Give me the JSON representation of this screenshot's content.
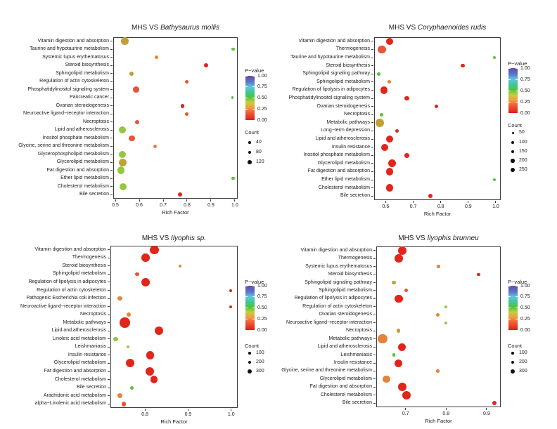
{
  "figure": {
    "background": "#ffffff",
    "x_axis_title": "Rich Factor"
  },
  "palette": {
    "red": "#e1251b",
    "red_orange": "#e85438",
    "orange": "#e5833c",
    "dark_yellow": "#bfa135",
    "yellow_green": "#93c83d",
    "green": "#59c43c",
    "legend_dot": "#111111",
    "axis": "#3c3c3c"
  },
  "pvalue_gradient_bottom_to_top": [
    "#df1d15 0%",
    "#e8432f 10%",
    "#ef6a38 20%",
    "#f29a43 28%",
    "#c3cf3e 40%",
    "#50c33a 52%",
    "#3fc79b 64%",
    "#62c5de 75%",
    "#5872cc 87%",
    "#6a4ca0 100%"
  ],
  "chart_data": [
    {
      "type": "scatter",
      "title_prefix": "MHS VS ",
      "title_species": "Bathysaurus mollis",
      "xlabel": "Rich Factor",
      "xlim": [
        0.491,
        1.012
      ],
      "xticks": [
        "0.5",
        "0.6",
        "0.7",
        "0.8",
        "0.9",
        "1.0"
      ],
      "xtick_values": [
        0.5,
        0.6,
        0.7,
        0.8,
        0.9,
        1.0
      ],
      "legend": {
        "pvalue_title": "P−value",
        "pvalue_labels": [
          "1.00",
          "0.75",
          "0.50",
          "0.25",
          "0.00"
        ],
        "count_title": "Count",
        "count_items": [
          {
            "label": "40",
            "r": 1.8
          },
          {
            "label": "80",
            "r": 2.3
          },
          {
            "label": "120",
            "r": 2.8
          }
        ]
      },
      "rows": [
        {
          "label": "Vitamin digestion and absorption",
          "x": 0.539,
          "r": 5.3,
          "c": "dark_yellow"
        },
        {
          "label": "Taurine and hypotaurine metabolism",
          "x": 0.993,
          "r": 2.1,
          "c": "green"
        },
        {
          "label": "Systemic lupus erythematosus",
          "x": 0.672,
          "r": 2.6,
          "c": "orange"
        },
        {
          "label": "Steroid biosynthesis",
          "x": 0.879,
          "r": 2.9,
          "c": "red"
        },
        {
          "label": "Sphingolipid metabolism",
          "x": 0.568,
          "r": 2.9,
          "c": "dark_yellow"
        },
        {
          "label": "Regulation of actin cytoskeleton",
          "x": 0.8,
          "r": 2.5,
          "c": "red_orange"
        },
        {
          "label": "Phosphatidylinositol signaling system",
          "x": 0.586,
          "r": 4.4,
          "c": "red_orange"
        },
        {
          "label": "Pancreatic cancer",
          "x": 0.99,
          "r": 1.8,
          "c": "green"
        },
        {
          "label": "Ovarian steroidogenesis",
          "x": 0.781,
          "r": 2.8,
          "c": "red"
        },
        {
          "label": "Neuroactive ligand−receptor interaction",
          "x": 0.799,
          "r": 2.5,
          "c": "red_orange"
        },
        {
          "label": "Necroptosis",
          "x": 0.592,
          "r": 3.0,
          "c": "red_orange"
        },
        {
          "label": "Lipid and atherosclerosis",
          "x": 0.53,
          "r": 5.2,
          "c": "yellow_green"
        },
        {
          "label": "Inositol phosphate metabolism",
          "x": 0.569,
          "r": 4.2,
          "c": "red_orange"
        },
        {
          "label": "Glycine, serine and threonine metabolism",
          "x": 0.667,
          "r": 2.6,
          "c": "orange"
        },
        {
          "label": "Glycerophospholipid metabolism",
          "x": 0.53,
          "r": 5.2,
          "c": "yellow_green"
        },
        {
          "label": "Glycerolipid metabolism",
          "x": 0.531,
          "r": 5.5,
          "c": "dark_yellow"
        },
        {
          "label": "Fat digestion and absorption",
          "x": 0.523,
          "r": 5.3,
          "c": "yellow_green"
        },
        {
          "label": "Ether lipid metabolism",
          "x": 0.993,
          "r": 2.1,
          "c": "green"
        },
        {
          "label": "Cholesterol metabolism",
          "x": 0.532,
          "r": 5.0,
          "c": "yellow_green"
        },
        {
          "label": "Bile secretion",
          "x": 0.77,
          "r": 3.1,
          "c": "red"
        }
      ]
    },
    {
      "type": "scatter",
      "title_prefix": "MHS VS ",
      "title_species": "Coryphaenoides rudis",
      "xlabel": "Rich Factor",
      "xlim": [
        0.558,
        1.018
      ],
      "xticks": [
        "0.6",
        "0.7",
        "0.8",
        "0.9",
        "1.0"
      ],
      "xtick_values": [
        0.6,
        0.7,
        0.8,
        0.9,
        1.0
      ],
      "legend": {
        "pvalue_title": "P−value",
        "pvalue_labels": [
          "1.00",
          "0.75",
          "0.50",
          "0.25",
          "0.00"
        ],
        "count_title": "Count",
        "count_items": [
          {
            "label": "50",
            "r": 1.5
          },
          {
            "label": "100",
            "r": 1.9
          },
          {
            "label": "150",
            "r": 2.3
          },
          {
            "label": "200",
            "r": 2.7
          },
          {
            "label": "250",
            "r": 3.1
          }
        ]
      },
      "rows": [
        {
          "label": "Vitamin digestion and absorption",
          "x": 0.613,
          "r": 5.0,
          "c": "red"
        },
        {
          "label": "Thermogenesis",
          "x": 0.586,
          "r": 5.6,
          "c": "red_orange"
        },
        {
          "label": "Taurine and hypotaurine metabolism",
          "x": 0.995,
          "r": 2.1,
          "c": "green"
        },
        {
          "label": "Steroid biosynthesis",
          "x": 0.88,
          "r": 2.6,
          "c": "red"
        },
        {
          "label": "Sphingolipid signaling pathway",
          "x": 0.574,
          "r": 2.4,
          "c": "green"
        },
        {
          "label": "Sphingolipid metabolism",
          "x": 0.613,
          "r": 2.5,
          "c": "orange"
        },
        {
          "label": "Regulation of lipolysis in adipocytes",
          "x": 0.594,
          "r": 5.3,
          "c": "red"
        },
        {
          "label": "Phosphatidylinositol signaling system",
          "x": 0.676,
          "r": 3.4,
          "c": "red"
        },
        {
          "label": "Ovarian steroidogenesis",
          "x": 0.784,
          "r": 2.7,
          "c": "red"
        },
        {
          "label": "Necroptosis",
          "x": 0.585,
          "r": 2.5,
          "c": "green"
        },
        {
          "label": "Metabolic pathways",
          "x": 0.578,
          "r": 6.2,
          "c": "dark_yellow"
        },
        {
          "label": "Long−term depression",
          "x": 0.641,
          "r": 2.8,
          "c": "red"
        },
        {
          "label": "Lipid and atherosclerosis",
          "x": 0.615,
          "r": 5.0,
          "c": "red"
        },
        {
          "label": "Insulin resistance",
          "x": 0.596,
          "r": 5.0,
          "c": "red"
        },
        {
          "label": "Inositol phosphate metabolism",
          "x": 0.676,
          "r": 3.4,
          "c": "red"
        },
        {
          "label": "Glycerolipid metabolism",
          "x": 0.623,
          "r": 5.6,
          "c": "red"
        },
        {
          "label": "Fat digestion and absorption",
          "x": 0.615,
          "r": 5.2,
          "c": "red"
        },
        {
          "label": "Ether lipid metabolism",
          "x": 0.995,
          "r": 2.1,
          "c": "green"
        },
        {
          "label": "Cholesterol metabolism",
          "x": 0.615,
          "r": 5.2,
          "c": "red"
        },
        {
          "label": "Bile secretion",
          "x": 0.762,
          "r": 3.0,
          "c": "red"
        }
      ]
    },
    {
      "type": "scatter",
      "title_prefix": "MHS VS ",
      "title_species": "Ilyophis sp.",
      "xlabel": "Rich Factor",
      "xlim": [
        0.72,
        1.015
      ],
      "xticks": [
        "0.8",
        "0.9",
        "1.0"
      ],
      "xtick_values": [
        0.8,
        0.9,
        1.0
      ],
      "legend": {
        "pvalue_title": "P−value",
        "pvalue_labels": [
          "1.00",
          "0.75",
          "0.50",
          "0.25",
          "0.00"
        ],
        "count_title": "Count",
        "count_items": [
          {
            "label": "100",
            "r": 1.8
          },
          {
            "label": "200",
            "r": 2.4
          },
          {
            "label": "300",
            "r": 3.0
          }
        ]
      },
      "rows": [
        {
          "label": "Vitamin digestion and absorption",
          "x": 0.822,
          "r": 6.2,
          "c": "red"
        },
        {
          "label": "Thermogenesis",
          "x": 0.801,
          "r": 5.9,
          "c": "red"
        },
        {
          "label": "Steroid biosynthesis",
          "x": 0.881,
          "r": 2.2,
          "c": "orange"
        },
        {
          "label": "Sphingolipid metabolism",
          "x": 0.782,
          "r": 2.9,
          "c": "red_orange"
        },
        {
          "label": "Regulation of lipolysis in adipocytes",
          "x": 0.801,
          "r": 5.9,
          "c": "red"
        },
        {
          "label": "Regulation of actin cytoskeleton",
          "x": 0.998,
          "r": 2.0,
          "c": "red"
        },
        {
          "label": "Pathogenic Escherichia coli infection",
          "x": 0.742,
          "r": 3.3,
          "c": "orange"
        },
        {
          "label": "Neuroactive ligand−receptor interaction",
          "x": 0.998,
          "r": 2.0,
          "c": "red"
        },
        {
          "label": "Necroptosis",
          "x": 0.762,
          "r": 2.9,
          "c": "orange"
        },
        {
          "label": "Metabolic pathways",
          "x": 0.753,
          "r": 7.3,
          "c": "red"
        },
        {
          "label": "Lipid and atherosclerosis",
          "x": 0.832,
          "r": 6.2,
          "c": "red"
        },
        {
          "label": "Linoleic acid metabolism",
          "x": 0.732,
          "r": 3.3,
          "c": "yellow_green"
        },
        {
          "label": "Leishmaniasis",
          "x": 0.761,
          "r": 2.0,
          "c": "yellow_green"
        },
        {
          "label": "Insulin resistance",
          "x": 0.812,
          "r": 5.6,
          "c": "red"
        },
        {
          "label": "Glycerolipid metabolism",
          "x": 0.765,
          "r": 6.0,
          "c": "red"
        },
        {
          "label": "Fat digestion and absorption",
          "x": 0.812,
          "r": 6.0,
          "c": "red"
        },
        {
          "label": "Cholesterol metabolism",
          "x": 0.821,
          "r": 5.2,
          "c": "red"
        },
        {
          "label": "Bile secretion",
          "x": 0.77,
          "r": 2.4,
          "c": "green"
        },
        {
          "label": "Arachidonic acid metabolism",
          "x": 0.742,
          "r": 3.6,
          "c": "orange"
        },
        {
          "label": "alpha−Linolenic acid metabolism",
          "x": 0.751,
          "r": 3.4,
          "c": "red_orange"
        }
      ]
    },
    {
      "type": "scatter",
      "title_prefix": "MHS VS ",
      "title_species": "Ilyophis brunneu",
      "xlabel": "Rich Factor",
      "xlim": [
        0.6275,
        0.935
      ],
      "xticks": [
        "0.7",
        "0.8",
        "0.9"
      ],
      "xtick_values": [
        0.7,
        0.8,
        0.9
      ],
      "legend": {
        "pvalue_title": "P−value",
        "pvalue_labels": [
          "1.00",
          "0.75",
          "0.50",
          "0.25",
          "0.00"
        ],
        "count_title": "Count",
        "count_items": [
          {
            "label": "100",
            "r": 1.8
          },
          {
            "label": "200",
            "r": 2.4
          },
          {
            "label": "300",
            "r": 3.0
          }
        ]
      },
      "rows": [
        {
          "label": "Vitamin digestion and absorption",
          "x": 0.692,
          "r": 5.9,
          "c": "red"
        },
        {
          "label": "Thermogenesis",
          "x": 0.683,
          "r": 5.9,
          "c": "red"
        },
        {
          "label": "Systemic lupus erythematosus",
          "x": 0.781,
          "r": 2.2,
          "c": "orange"
        },
        {
          "label": "Steroid biosynthesis",
          "x": 0.88,
          "r": 2.2,
          "c": "red"
        },
        {
          "label": "Sphingolipid signaling pathway",
          "x": 0.671,
          "r": 2.9,
          "c": "dark_yellow"
        },
        {
          "label": "Sphingolipid metabolism",
          "x": 0.701,
          "r": 2.5,
          "c": "red_orange"
        },
        {
          "label": "Regulation of lipolysis in adipocytes",
          "x": 0.683,
          "r": 5.7,
          "c": "red"
        },
        {
          "label": "Regulation of actin cytoskeleton",
          "x": 0.8,
          "r": 2.2,
          "c": "yellow_green"
        },
        {
          "label": "Ovarian steroidogenesis",
          "x": 0.78,
          "r": 2.6,
          "c": "orange"
        },
        {
          "label": "Neuroactive ligand−receptor interaction",
          "x": 0.8,
          "r": 2.2,
          "c": "yellow_green"
        },
        {
          "label": "Necroptosis",
          "x": 0.682,
          "r": 2.8,
          "c": "dark_yellow"
        },
        {
          "label": "Metabolic pathways",
          "x": 0.643,
          "r": 6.6,
          "c": "orange"
        },
        {
          "label": "Lipid and atherosclerosis",
          "x": 0.691,
          "r": 5.5,
          "c": "red"
        },
        {
          "label": "Leishmaniasis",
          "x": 0.671,
          "r": 2.1,
          "c": "green"
        },
        {
          "label": "Insulin resistance",
          "x": 0.683,
          "r": 5.5,
          "c": "red"
        },
        {
          "label": "Glycine, serine and threonine metabolism",
          "x": 0.78,
          "r": 2.3,
          "c": "orange"
        },
        {
          "label": "Glycerolipid metabolism",
          "x": 0.653,
          "r": 5.3,
          "c": "orange"
        },
        {
          "label": "Fat digestion and absorption",
          "x": 0.692,
          "r": 5.9,
          "c": "red"
        },
        {
          "label": "Cholesterol metabolism",
          "x": 0.702,
          "r": 6.0,
          "c": "red"
        },
        {
          "label": "Bile secretion",
          "x": 0.92,
          "r": 3.1,
          "c": "red"
        }
      ]
    }
  ]
}
